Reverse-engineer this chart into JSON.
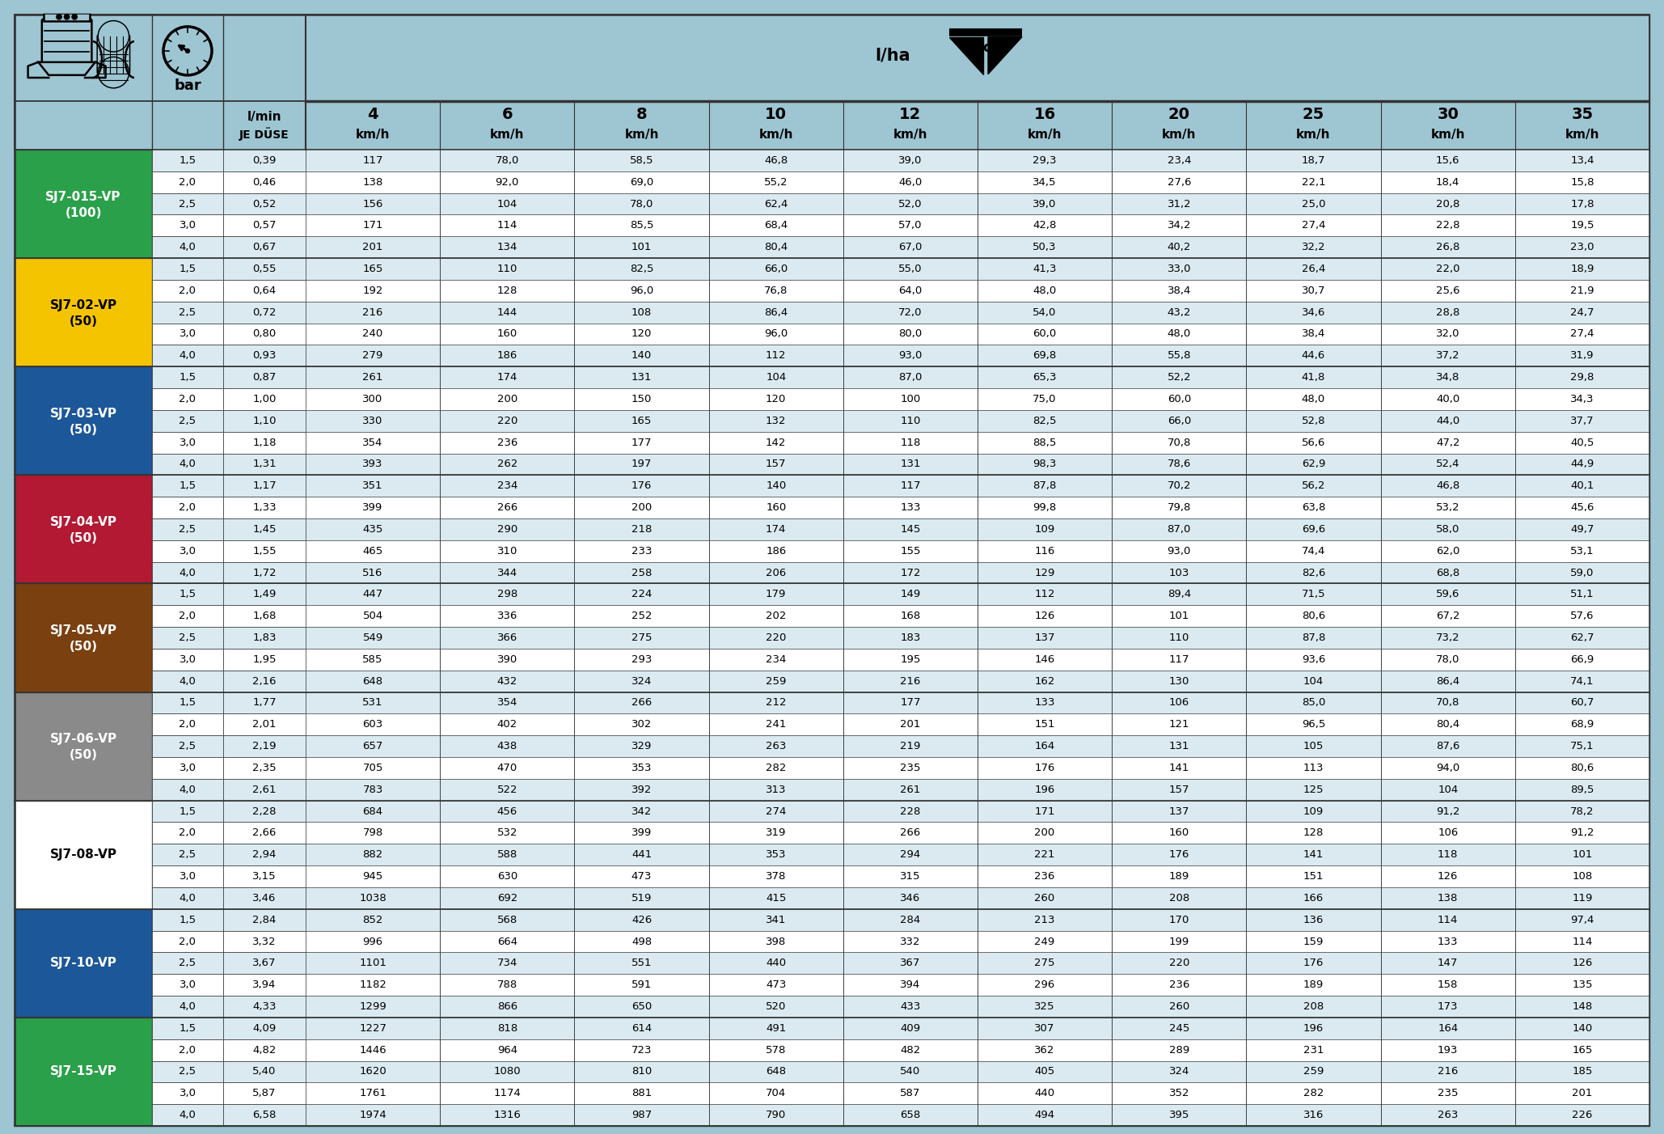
{
  "background_color": "#9ec5d2",
  "row_color_odd": "#daeaf0",
  "row_color_even": "#ffffff",
  "pressures": [
    1.5,
    2.0,
    2.5,
    3.0,
    4.0
  ],
  "nozzle_groups": [
    {
      "name": "SJ7-015-VP",
      "sub": "(100)",
      "color": "#2ba04a",
      "text_color": "#ffffff",
      "lmin_values": [
        "0,39",
        "0,46",
        "0,52",
        "0,57",
        "0,67"
      ],
      "data": [
        [
          "117",
          "78,0",
          "58,5",
          "46,8",
          "39,0",
          "29,3",
          "23,4",
          "18,7",
          "15,6",
          "13,4"
        ],
        [
          "138",
          "92,0",
          "69,0",
          "55,2",
          "46,0",
          "34,5",
          "27,6",
          "22,1",
          "18,4",
          "15,8"
        ],
        [
          "156",
          "104",
          "78,0",
          "62,4",
          "52,0",
          "39,0",
          "31,2",
          "25,0",
          "20,8",
          "17,8"
        ],
        [
          "171",
          "114",
          "85,5",
          "68,4",
          "57,0",
          "42,8",
          "34,2",
          "27,4",
          "22,8",
          "19,5"
        ],
        [
          "201",
          "134",
          "101",
          "80,4",
          "67,0",
          "50,3",
          "40,2",
          "32,2",
          "26,8",
          "23,0"
        ]
      ]
    },
    {
      "name": "SJ7-02-VP",
      "sub": "(50)",
      "color": "#f5c400",
      "text_color": "#000000",
      "lmin_values": [
        "0,55",
        "0,64",
        "0,72",
        "0,80",
        "0,93"
      ],
      "data": [
        [
          "165",
          "110",
          "82,5",
          "66,0",
          "55,0",
          "41,3",
          "33,0",
          "26,4",
          "22,0",
          "18,9"
        ],
        [
          "192",
          "128",
          "96,0",
          "76,8",
          "64,0",
          "48,0",
          "38,4",
          "30,7",
          "25,6",
          "21,9"
        ],
        [
          "216",
          "144",
          "108",
          "86,4",
          "72,0",
          "54,0",
          "43,2",
          "34,6",
          "28,8",
          "24,7"
        ],
        [
          "240",
          "160",
          "120",
          "96,0",
          "80,0",
          "60,0",
          "48,0",
          "38,4",
          "32,0",
          "27,4"
        ],
        [
          "279",
          "186",
          "140",
          "112",
          "93,0",
          "69,8",
          "55,8",
          "44,6",
          "37,2",
          "31,9"
        ]
      ]
    },
    {
      "name": "SJ7-03-VP",
      "sub": "(50)",
      "color": "#1c5799",
      "text_color": "#ffffff",
      "lmin_values": [
        "0,87",
        "1,00",
        "1,10",
        "1,18",
        "1,31"
      ],
      "data": [
        [
          "261",
          "174",
          "131",
          "104",
          "87,0",
          "65,3",
          "52,2",
          "41,8",
          "34,8",
          "29,8"
        ],
        [
          "300",
          "200",
          "150",
          "120",
          "100",
          "75,0",
          "60,0",
          "48,0",
          "40,0",
          "34,3"
        ],
        [
          "330",
          "220",
          "165",
          "132",
          "110",
          "82,5",
          "66,0",
          "52,8",
          "44,0",
          "37,7"
        ],
        [
          "354",
          "236",
          "177",
          "142",
          "118",
          "88,5",
          "70,8",
          "56,6",
          "47,2",
          "40,5"
        ],
        [
          "393",
          "262",
          "197",
          "157",
          "131",
          "98,3",
          "78,6",
          "62,9",
          "52,4",
          "44,9"
        ]
      ]
    },
    {
      "name": "SJ7-04-VP",
      "sub": "(50)",
      "color": "#b31933",
      "text_color": "#ffffff",
      "lmin_values": [
        "1,17",
        "1,33",
        "1,45",
        "1,55",
        "1,72"
      ],
      "data": [
        [
          "351",
          "234",
          "176",
          "140",
          "117",
          "87,8",
          "70,2",
          "56,2",
          "46,8",
          "40,1"
        ],
        [
          "399",
          "266",
          "200",
          "160",
          "133",
          "99,8",
          "79,8",
          "63,8",
          "53,2",
          "45,6"
        ],
        [
          "435",
          "290",
          "218",
          "174",
          "145",
          "109",
          "87,0",
          "69,6",
          "58,0",
          "49,7"
        ],
        [
          "465",
          "310",
          "233",
          "186",
          "155",
          "116",
          "93,0",
          "74,4",
          "62,0",
          "53,1"
        ],
        [
          "516",
          "344",
          "258",
          "206",
          "172",
          "129",
          "103",
          "82,6",
          "68,8",
          "59,0"
        ]
      ]
    },
    {
      "name": "SJ7-05-VP",
      "sub": "(50)",
      "color": "#7b4010",
      "text_color": "#ffffff",
      "lmin_values": [
        "1,49",
        "1,68",
        "1,83",
        "1,95",
        "2,16"
      ],
      "data": [
        [
          "447",
          "298",
          "224",
          "179",
          "149",
          "112",
          "89,4",
          "71,5",
          "59,6",
          "51,1"
        ],
        [
          "504",
          "336",
          "252",
          "202",
          "168",
          "126",
          "101",
          "80,6",
          "67,2",
          "57,6"
        ],
        [
          "549",
          "366",
          "275",
          "220",
          "183",
          "137",
          "110",
          "87,8",
          "73,2",
          "62,7"
        ],
        [
          "585",
          "390",
          "293",
          "234",
          "195",
          "146",
          "117",
          "93,6",
          "78,0",
          "66,9"
        ],
        [
          "648",
          "432",
          "324",
          "259",
          "216",
          "162",
          "130",
          "104",
          "86,4",
          "74,1"
        ]
      ]
    },
    {
      "name": "SJ7-06-VP",
      "sub": "(50)",
      "color": "#8a8a8a",
      "text_color": "#ffffff",
      "lmin_values": [
        "1,77",
        "2,01",
        "2,19",
        "2,35",
        "2,61"
      ],
      "data": [
        [
          "531",
          "354",
          "266",
          "212",
          "177",
          "133",
          "106",
          "85,0",
          "70,8",
          "60,7"
        ],
        [
          "603",
          "402",
          "302",
          "241",
          "201",
          "151",
          "121",
          "96,5",
          "80,4",
          "68,9"
        ],
        [
          "657",
          "438",
          "329",
          "263",
          "219",
          "164",
          "131",
          "105",
          "87,6",
          "75,1"
        ],
        [
          "705",
          "470",
          "353",
          "282",
          "235",
          "176",
          "141",
          "113",
          "94,0",
          "80,6"
        ],
        [
          "783",
          "522",
          "392",
          "313",
          "261",
          "196",
          "157",
          "125",
          "104",
          "89,5"
        ]
      ]
    },
    {
      "name": "SJ7-08-VP",
      "sub": "",
      "color": "#ffffff",
      "text_color": "#000000",
      "lmin_values": [
        "2,28",
        "2,66",
        "2,94",
        "3,15",
        "3,46"
      ],
      "data": [
        [
          "684",
          "456",
          "342",
          "274",
          "228",
          "171",
          "137",
          "109",
          "91,2",
          "78,2"
        ],
        [
          "798",
          "532",
          "399",
          "319",
          "266",
          "200",
          "160",
          "128",
          "106",
          "91,2"
        ],
        [
          "882",
          "588",
          "441",
          "353",
          "294",
          "221",
          "176",
          "141",
          "118",
          "101"
        ],
        [
          "945",
          "630",
          "473",
          "378",
          "315",
          "236",
          "189",
          "151",
          "126",
          "108"
        ],
        [
          "1038",
          "692",
          "519",
          "415",
          "346",
          "260",
          "208",
          "166",
          "138",
          "119"
        ]
      ]
    },
    {
      "name": "SJ7-10-VP",
      "sub": "",
      "color": "#1c5799",
      "text_color": "#ffffff",
      "lmin_values": [
        "2,84",
        "3,32",
        "3,67",
        "3,94",
        "4,33"
      ],
      "data": [
        [
          "852",
          "568",
          "426",
          "341",
          "284",
          "213",
          "170",
          "136",
          "114",
          "97,4"
        ],
        [
          "996",
          "664",
          "498",
          "398",
          "332",
          "249",
          "199",
          "159",
          "133",
          "114"
        ],
        [
          "1101",
          "734",
          "551",
          "440",
          "367",
          "275",
          "220",
          "176",
          "147",
          "126"
        ],
        [
          "1182",
          "788",
          "591",
          "473",
          "394",
          "296",
          "236",
          "189",
          "158",
          "135"
        ],
        [
          "1299",
          "866",
          "650",
          "520",
          "433",
          "325",
          "260",
          "208",
          "173",
          "148"
        ]
      ]
    },
    {
      "name": "SJ7-15-VP",
      "sub": "",
      "color": "#2ba04a",
      "text_color": "#ffffff",
      "lmin_values": [
        "4,09",
        "4,82",
        "5,40",
        "5,87",
        "6,58"
      ],
      "data": [
        [
          "1227",
          "818",
          "614",
          "491",
          "409",
          "307",
          "245",
          "196",
          "164",
          "140"
        ],
        [
          "1446",
          "964",
          "723",
          "578",
          "482",
          "362",
          "289",
          "231",
          "193",
          "165"
        ],
        [
          "1620",
          "1080",
          "810",
          "648",
          "540",
          "405",
          "324",
          "259",
          "216",
          "185"
        ],
        [
          "1761",
          "1174",
          "881",
          "704",
          "587",
          "440",
          "352",
          "282",
          "235",
          "201"
        ],
        [
          "1974",
          "1316",
          "987",
          "790",
          "658",
          "494",
          "395",
          "316",
          "263",
          "226"
        ]
      ]
    }
  ]
}
